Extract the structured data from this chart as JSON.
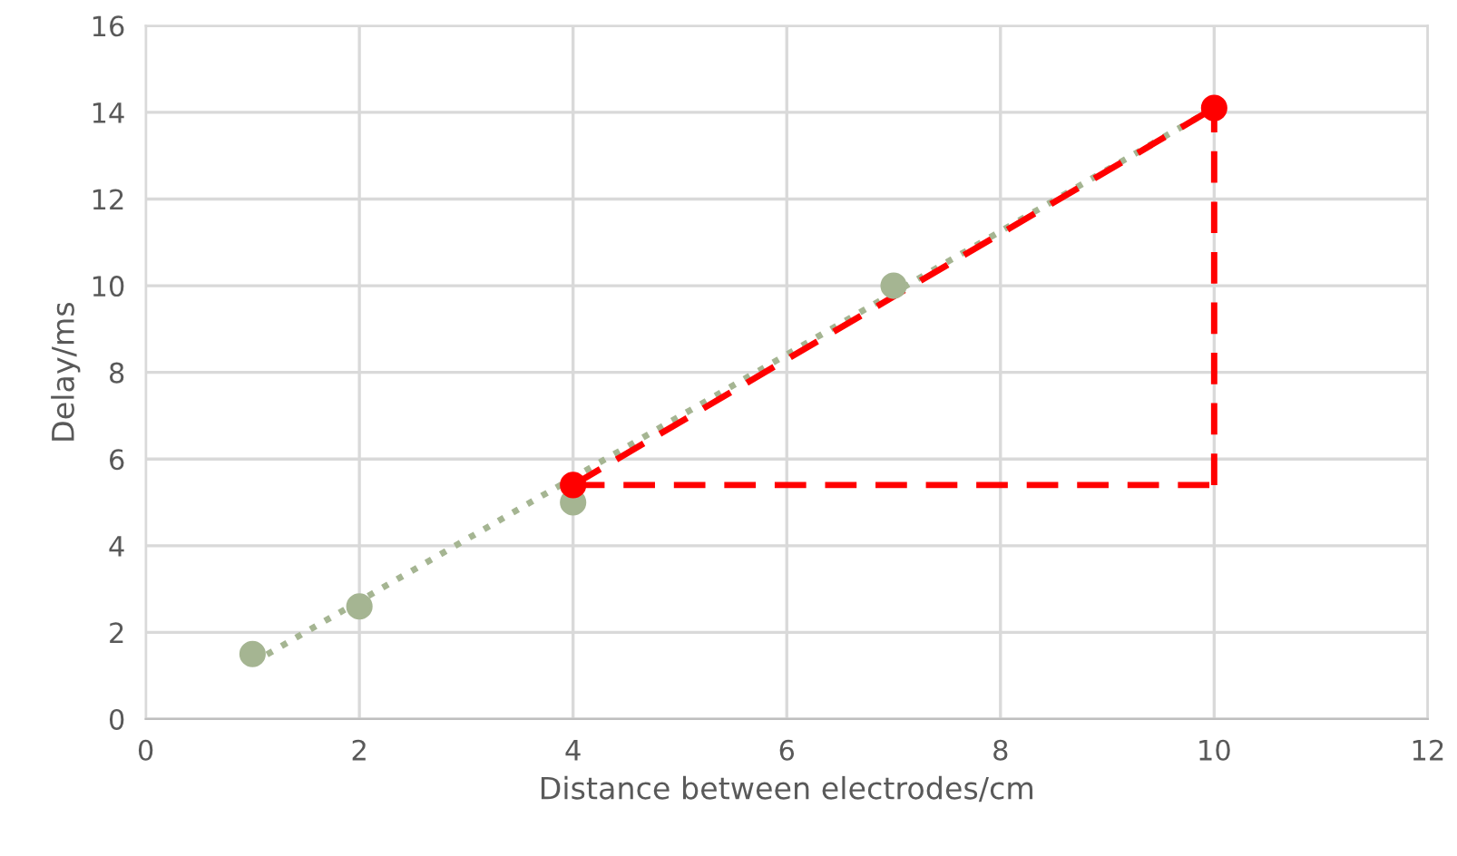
{
  "chart_data": {
    "type": "scatter",
    "xlabel": "Distance between electrodes/cm",
    "ylabel": "Delay/ms",
    "xlim": [
      0,
      12
    ],
    "ylim": [
      0,
      16
    ],
    "xticks": [
      0,
      2,
      4,
      6,
      8,
      10,
      12
    ],
    "yticks": [
      0,
      2,
      4,
      6,
      8,
      10,
      12,
      14,
      16
    ],
    "grid": true,
    "legend": false,
    "series": [
      {
        "type": "line",
        "color": "#a5b592",
        "line_style": "dotted",
        "marker": "none",
        "x": [
          1,
          10
        ],
        "values": [
          1.3,
          14.1
        ]
      },
      {
        "color": "#a5b592",
        "marker": "circle",
        "x": [
          1,
          2,
          4,
          7
        ],
        "values": [
          1.5,
          2.6,
          5.0,
          10.0
        ]
      },
      {
        "type": "line",
        "color": "#ff0000",
        "line_style": "dashed",
        "marker": "none",
        "x": [
          4,
          10
        ],
        "values": [
          5.4,
          14.1
        ]
      },
      {
        "type": "line",
        "color": "#ff0000",
        "line_style": "dashed",
        "marker": "none",
        "x": [
          4,
          10
        ],
        "values": [
          5.4,
          5.4
        ]
      },
      {
        "type": "line",
        "color": "#ff0000",
        "line_style": "dashed",
        "marker": "none",
        "x": [
          10,
          10
        ],
        "values": [
          5.4,
          14.1
        ]
      },
      {
        "color": "#ff0000",
        "marker": "circle",
        "x": [
          4,
          10
        ],
        "values": [
          5.4,
          14.1
        ]
      }
    ]
  }
}
